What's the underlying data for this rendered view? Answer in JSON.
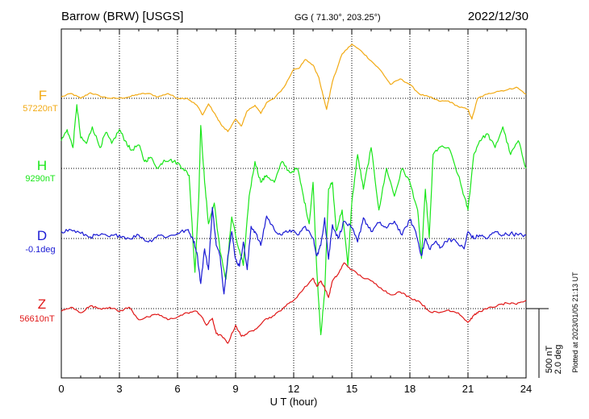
{
  "header": {
    "station": "Barrow (BRW)  [USGS]",
    "coords": "GG ( 71.30°, 203.25°)",
    "date": "2022/12/30"
  },
  "footer": {
    "xlabel": "U T (hour)",
    "plotted": "Plotted at 2023/01/05 21:13 UT"
  },
  "scale_bar": {
    "line1": "500 nT",
    "line2": "2.0 deg"
  },
  "colors": {
    "F": "#f2aa14",
    "H": "#19e619",
    "D": "#1a1ad4",
    "Z": "#e01818",
    "axis": "#000000"
  },
  "chart_data": {
    "type": "line",
    "x_unit": "hour",
    "xlim": [
      0,
      24
    ],
    "x_ticks": [
      "0",
      "3",
      "6",
      "9",
      "12",
      "15",
      "18",
      "21",
      "24"
    ],
    "scale": "500 nT / 2.0 deg per scale bar",
    "series": [
      {
        "name": "F",
        "baseline_label": "57220nT",
        "unit": "nT",
        "x": [
          0,
          0.5,
          1,
          1.5,
          2,
          2.5,
          3,
          3.5,
          4,
          4.5,
          5,
          5.5,
          6,
          6.5,
          7,
          7.3,
          7.6,
          8,
          8.3,
          8.6,
          9,
          9.3,
          9.6,
          10,
          10.3,
          10.6,
          11,
          11.5,
          12,
          12.3,
          12.6,
          13,
          13.3,
          13.5,
          13.7,
          14,
          14.5,
          15,
          15.5,
          16,
          16.5,
          17,
          17.5,
          18,
          18.5,
          19,
          19.5,
          20,
          20.5,
          21,
          21.2,
          21.5,
          22,
          22.5,
          23,
          23.5,
          24
        ],
        "values": [
          10,
          35,
          0,
          40,
          15,
          0,
          0,
          10,
          30,
          35,
          10,
          35,
          0,
          0,
          -50,
          -120,
          -40,
          -130,
          -200,
          -240,
          -150,
          -200,
          -90,
          -50,
          -110,
          -30,
          0,
          80,
          210,
          220,
          280,
          240,
          150,
          30,
          -80,
          120,
          320,
          390,
          340,
          270,
          200,
          100,
          140,
          100,
          30,
          10,
          -20,
          -20,
          -60,
          -80,
          -150,
          0,
          30,
          50,
          60,
          80,
          30
        ]
      },
      {
        "name": "H",
        "baseline_label": "9290nT",
        "unit": "nT",
        "x": [
          0,
          0.3,
          0.6,
          0.8,
          1,
          1.3,
          1.6,
          2,
          2.3,
          2.6,
          3,
          3.3,
          3.6,
          4,
          4.3,
          4.6,
          5,
          5.3,
          5.6,
          6,
          6.3,
          6.6,
          6.9,
          7.1,
          7.2,
          7.4,
          7.6,
          7.9,
          8.2,
          8.5,
          8.8,
          9.1,
          9.4,
          9.7,
          10,
          10.3,
          10.6,
          11,
          11.4,
          11.8,
          12.2,
          12.5,
          12.8,
          13,
          13.2,
          13.4,
          13.6,
          13.8,
          14,
          14.2,
          14.5,
          14.8,
          15,
          15.3,
          15.6,
          16,
          16.4,
          16.8,
          17.2,
          17.6,
          18,
          18.4,
          18.6,
          18.8,
          19,
          19.2,
          19.5,
          20,
          20.5,
          20.8,
          21,
          21.3,
          21.6,
          22,
          22.4,
          22.8,
          23.2,
          23.6,
          24
        ],
        "values": [
          200,
          280,
          150,
          460,
          220,
          180,
          300,
          150,
          260,
          180,
          280,
          200,
          130,
          170,
          50,
          80,
          0,
          60,
          60,
          40,
          0,
          -50,
          -750,
          -200,
          310,
          -100,
          -400,
          -250,
          -600,
          -800,
          -350,
          -550,
          -700,
          -200,
          50,
          -100,
          -50,
          -100,
          50,
          -30,
          0,
          -200,
          -400,
          -100,
          -750,
          -1200,
          -900,
          -150,
          -100,
          -450,
          -300,
          -700,
          -250,
          100,
          -150,
          150,
          -300,
          0,
          -200,
          0,
          -100,
          -300,
          -650,
          -150,
          -500,
          100,
          150,
          150,
          -50,
          -200,
          -300,
          100,
          200,
          250,
          150,
          300,
          100,
          200,
          0
        ]
      },
      {
        "name": "D",
        "baseline_label": "-0.1deg",
        "unit": "deg",
        "x": [
          0,
          0.5,
          1,
          1.5,
          2,
          2.5,
          3,
          3.5,
          4,
          4.5,
          5,
          5.5,
          6,
          6.5,
          6.8,
          7,
          7.2,
          7.4,
          7.6,
          7.8,
          8,
          8.2,
          8.4,
          8.6,
          8.8,
          9,
          9.2,
          9.4,
          9.6,
          9.8,
          10,
          10.3,
          10.6,
          11,
          11.4,
          11.8,
          12.2,
          12.6,
          13,
          13.2,
          13.4,
          13.6,
          13.8,
          14,
          14.3,
          14.6,
          15,
          15.3,
          15.6,
          16,
          16.4,
          16.8,
          17.2,
          17.6,
          18,
          18.3,
          18.6,
          18.8,
          19,
          19.3,
          19.6,
          20,
          20.4,
          20.8,
          21,
          21.3,
          21.6,
          22,
          22.4,
          22.8,
          23.2,
          23.6,
          24
        ],
        "values": [
          0.2,
          0.25,
          0.15,
          0.05,
          0.1,
          0.05,
          0.1,
          0.0,
          0.1,
          -0.1,
          0.1,
          0.05,
          0.15,
          0.25,
          0.0,
          -0.4,
          -1.3,
          -0.3,
          -0.9,
          0.9,
          -0.2,
          -0.5,
          -1.6,
          -0.5,
          0.2,
          -0.6,
          -0.8,
          -0.1,
          -0.9,
          0.35,
          0.2,
          -0.2,
          0.65,
          0.25,
          0.1,
          0.25,
          0.1,
          0.35,
          0.0,
          -0.5,
          -0.2,
          0.6,
          -0.6,
          0.4,
          0.0,
          0.5,
          0.3,
          -0.1,
          0.6,
          0.2,
          0.45,
          0.3,
          0.5,
          0.1,
          0.55,
          0.2,
          -0.5,
          0.0,
          -0.3,
          -0.1,
          -0.25,
          0.0,
          -0.1,
          -0.3,
          0.2,
          0.0,
          0.1,
          0.0,
          0.2,
          0.1,
          0.15,
          0.1,
          0.1
        ]
      },
      {
        "name": "Z",
        "baseline_label": "56610nT",
        "unit": "nT",
        "x": [
          0,
          0.5,
          1,
          1.5,
          2,
          2.5,
          3,
          3.5,
          4,
          4.5,
          5,
          5.5,
          6,
          6.5,
          7,
          7.2,
          7.5,
          7.8,
          8,
          8.3,
          8.6,
          9,
          9.3,
          9.6,
          10,
          10.5,
          11,
          11.5,
          12,
          12.5,
          13,
          13.2,
          13.4,
          13.6,
          13.8,
          14,
          14.3,
          14.6,
          15,
          15.5,
          16,
          16.5,
          17,
          17.5,
          18,
          18.5,
          19,
          19.5,
          20,
          20.5,
          21,
          21.3,
          21.6,
          22,
          22.5,
          23,
          23.5,
          24
        ],
        "values": [
          -20,
          10,
          -30,
          20,
          0,
          10,
          -20,
          10,
          -80,
          -60,
          -40,
          -80,
          -60,
          -30,
          -20,
          -50,
          -120,
          -70,
          -180,
          -200,
          -250,
          -120,
          -200,
          -180,
          -150,
          -80,
          -50,
          10,
          60,
          140,
          220,
          160,
          200,
          150,
          80,
          200,
          250,
          330,
          280,
          230,
          200,
          150,
          100,
          120,
          80,
          50,
          -20,
          -30,
          -10,
          -30,
          -100,
          -50,
          -20,
          0,
          20,
          40,
          30,
          60
        ]
      }
    ]
  }
}
